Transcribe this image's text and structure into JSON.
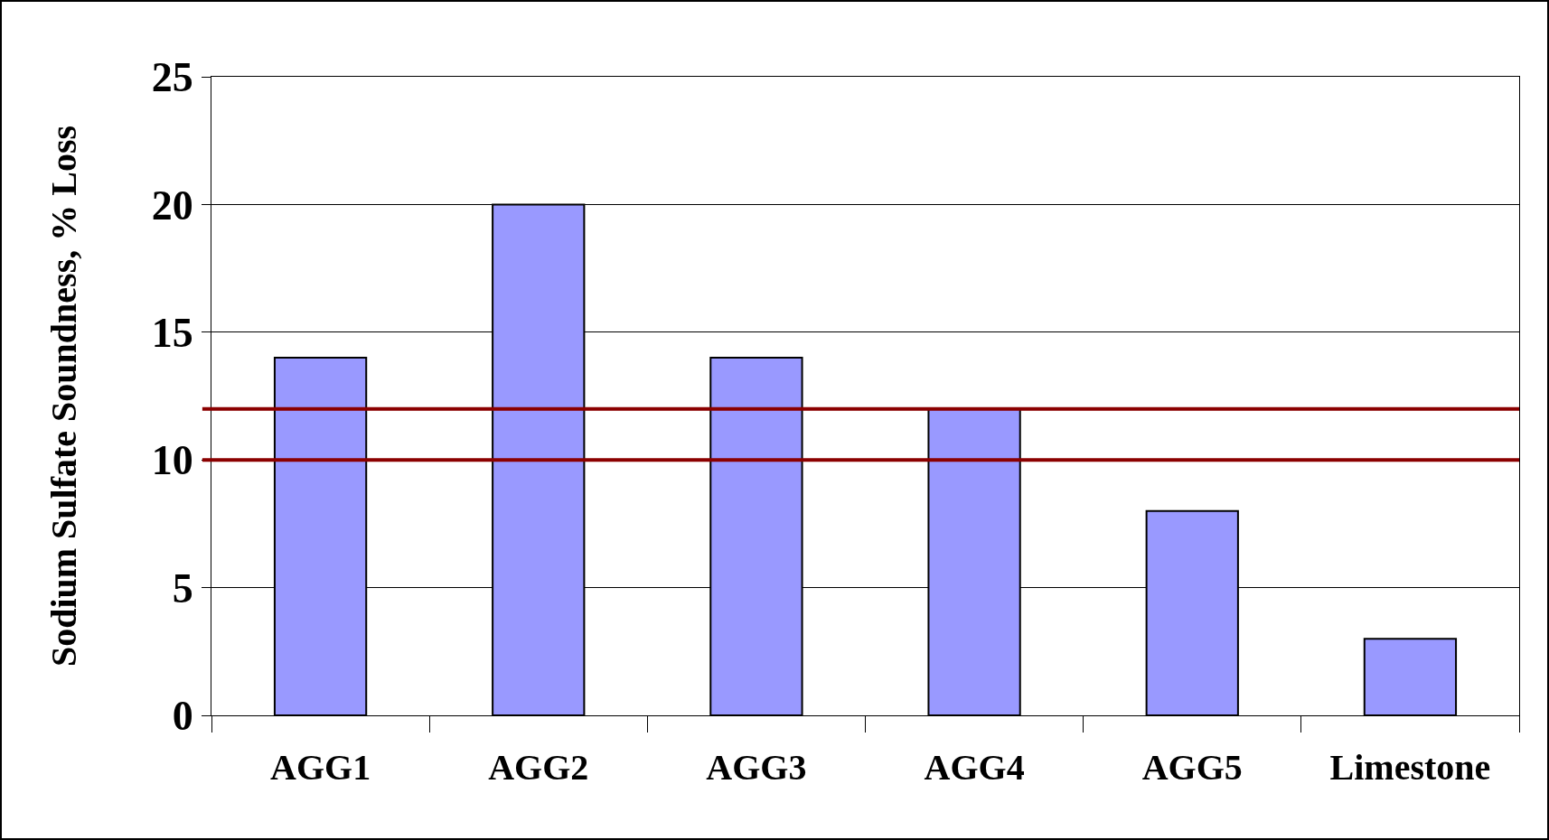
{
  "chart_data": {
    "type": "bar",
    "ylabel": "Sodium Sulfate Soundness, % Loss",
    "categories": [
      "AGG1",
      "AGG2",
      "AGG3",
      "AGG4",
      "AGG5",
      "Limestone"
    ],
    "values": [
      14,
      20,
      14,
      12,
      8,
      3
    ],
    "color": "#9999ff",
    "ylim": [
      0,
      25
    ],
    "yticks": [
      0,
      5,
      10,
      15,
      20,
      25
    ],
    "grid": "y",
    "ref_lines": [
      {
        "axis": "y",
        "value": 12,
        "color": "#8b0000"
      },
      {
        "axis": "y",
        "value": 10,
        "color": "#8b0000"
      }
    ]
  }
}
